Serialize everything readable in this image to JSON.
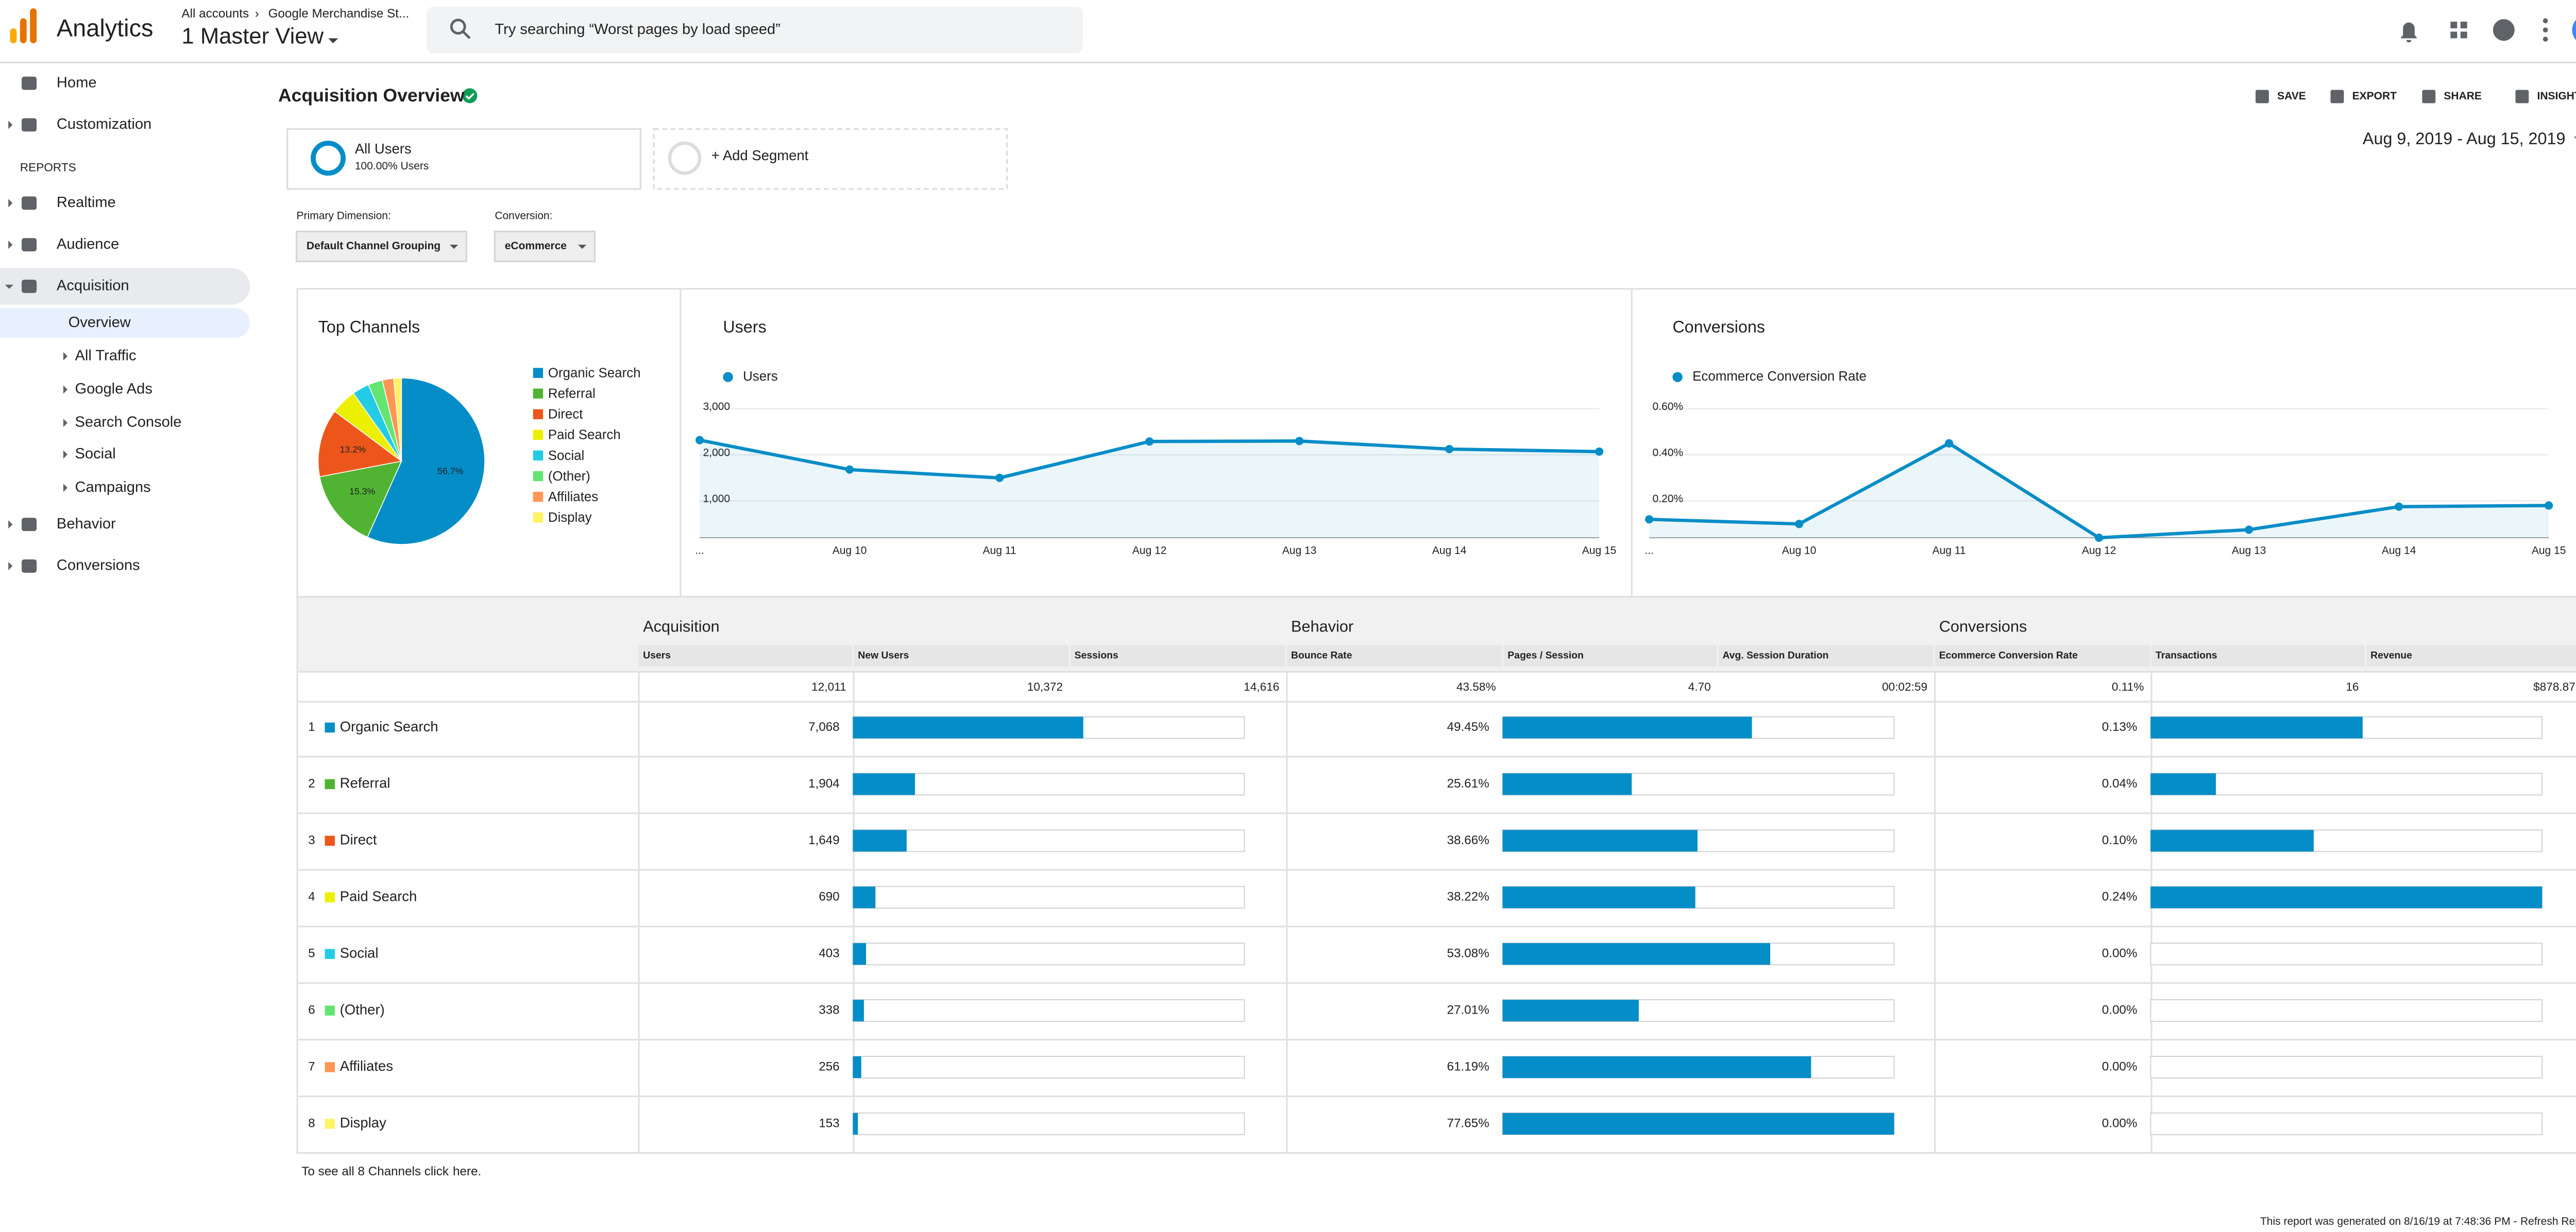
{
  "header": {
    "app_name": "Analytics",
    "breadcrumb": [
      "All accounts",
      "Google Merchandise St..."
    ],
    "view": "1 Master View",
    "search_placeholder": "Try searching “Worst pages by load speed”"
  },
  "sidebar": {
    "top": [
      "Home",
      "Customization"
    ],
    "reports_label": "REPORTS",
    "reports": [
      "Realtime",
      "Audience",
      "Acquisition"
    ],
    "acquisition_items": [
      "Overview",
      "All Traffic",
      "Google Ads",
      "Search Console",
      "Social",
      "Campaigns"
    ],
    "bottom": [
      "Behavior",
      "Conversions"
    ]
  },
  "page": {
    "title": "Acquisition Overview",
    "actions": [
      "SAVE",
      "EXPORT",
      "SHARE",
      "INSIGHTS"
    ],
    "date_range": "Aug 9, 2019 - Aug 15, 2019",
    "segments": [
      {
        "name": "All Users",
        "detail": "100.00% Users"
      },
      {
        "name": "+ Add Segment"
      }
    ],
    "primary_dimension": {
      "label": "Primary Dimension:",
      "value": "Default Channel Grouping"
    },
    "conversion": {
      "label": "Conversion:",
      "value": "eCommerce"
    }
  },
  "chart_data": [
    {
      "type": "pie",
      "title": "Top Channels",
      "categories": [
        "Organic Search",
        "Referral",
        "Direct",
        "Paid Search",
        "Social",
        "(Other)",
        "Affiliates",
        "Display"
      ],
      "values": [
        56.7,
        15.3,
        13.2,
        5.0,
        3.3,
        2.8,
        2.2,
        1.5
      ],
      "value_labels": [
        "56.7%",
        "15.3%",
        "13.2%",
        null,
        null,
        null,
        null,
        null
      ],
      "colors": [
        "#058dc7",
        "#50b432",
        "#ed561b",
        "#edef00",
        "#24cbe5",
        "#64e572",
        "#ff9655",
        "#fff263"
      ]
    },
    {
      "type": "line",
      "title": "Users",
      "categories": [
        "...",
        "Aug 10",
        "Aug 11",
        "Aug 12",
        "Aug 13",
        "Aug 14",
        "Aug 15"
      ],
      "series": [
        {
          "name": "Users",
          "color": "#058dc7",
          "values": [
            2320,
            1680,
            1500,
            2290,
            2300,
            2125,
            2070
          ]
        }
      ],
      "ylim": [
        200,
        3200
      ],
      "yticks": [
        {
          "value": 1000,
          "label": "1,000"
        },
        {
          "value": 2000,
          "label": "2,000"
        },
        {
          "value": 3000,
          "label": "3,000"
        }
      ],
      "grid": true
    },
    {
      "type": "line",
      "title": "Conversions",
      "categories": [
        "...",
        "Aug 10",
        "Aug 11",
        "Aug 12",
        "Aug 13",
        "Aug 14",
        "Aug 15"
      ],
      "series": [
        {
          "name": "Ecommerce Conversion Rate",
          "color": "#058dc7",
          "values": [
            0.12,
            0.1,
            0.45,
            0.04,
            0.075,
            0.175,
            0.18
          ]
        }
      ],
      "ylim": [
        0.04,
        0.64
      ],
      "yticks": [
        {
          "value": 0.2,
          "label": "0.20%"
        },
        {
          "value": 0.4,
          "label": "0.40%"
        },
        {
          "value": 0.6,
          "label": "0.60%"
        }
      ],
      "grid": true
    }
  ],
  "table": {
    "groups": [
      "Acquisition",
      "Behavior",
      "Conversions"
    ],
    "columns": [
      "Users",
      "New Users",
      "Sessions",
      "Bounce Rate",
      "Pages / Session",
      "Avg. Session Duration",
      "Ecommerce Conversion Rate",
      "Transactions",
      "Revenue"
    ],
    "totals": [
      "12,011",
      "10,372",
      "14,616",
      "43.58%",
      "4.70",
      "00:02:59",
      "0.11%",
      "16",
      "$878.87"
    ],
    "bar_color": "#058dc7",
    "rows": [
      {
        "rank": 1,
        "name": "Organic Search",
        "users": "7,068",
        "bounce_rate": "49.45%",
        "conversion_rate": "0.13%"
      },
      {
        "rank": 2,
        "name": "Referral",
        "users": "1,904",
        "bounce_rate": "25.61%",
        "conversion_rate": "0.04%"
      },
      {
        "rank": 3,
        "name": "Direct",
        "users": "1,649",
        "bounce_rate": "38.66%",
        "conversion_rate": "0.10%"
      },
      {
        "rank": 4,
        "name": "Paid Search",
        "users": "690",
        "bounce_rate": "38.22%",
        "conversion_rate": "0.24%"
      },
      {
        "rank": 5,
        "name": "Social",
        "users": "403",
        "bounce_rate": "53.08%",
        "conversion_rate": "0.00%"
      },
      {
        "rank": 6,
        "name": "(Other)",
        "users": "338",
        "bounce_rate": "27.01%",
        "conversion_rate": "0.00%"
      },
      {
        "rank": 7,
        "name": "Affiliates",
        "users": "256",
        "bounce_rate": "61.19%",
        "conversion_rate": "0.00%"
      },
      {
        "rank": 8,
        "name": "Display",
        "users": "153",
        "bounce_rate": "77.65%",
        "conversion_rate": "0.00%"
      }
    ]
  },
  "footer": {
    "note": "To see all 8 Channels click",
    "link": "here",
    "note_end": ".",
    "generated": "This report was generated on 8/16/19 at 7:48:36 PM -",
    "refresh": "Refresh Report"
  }
}
